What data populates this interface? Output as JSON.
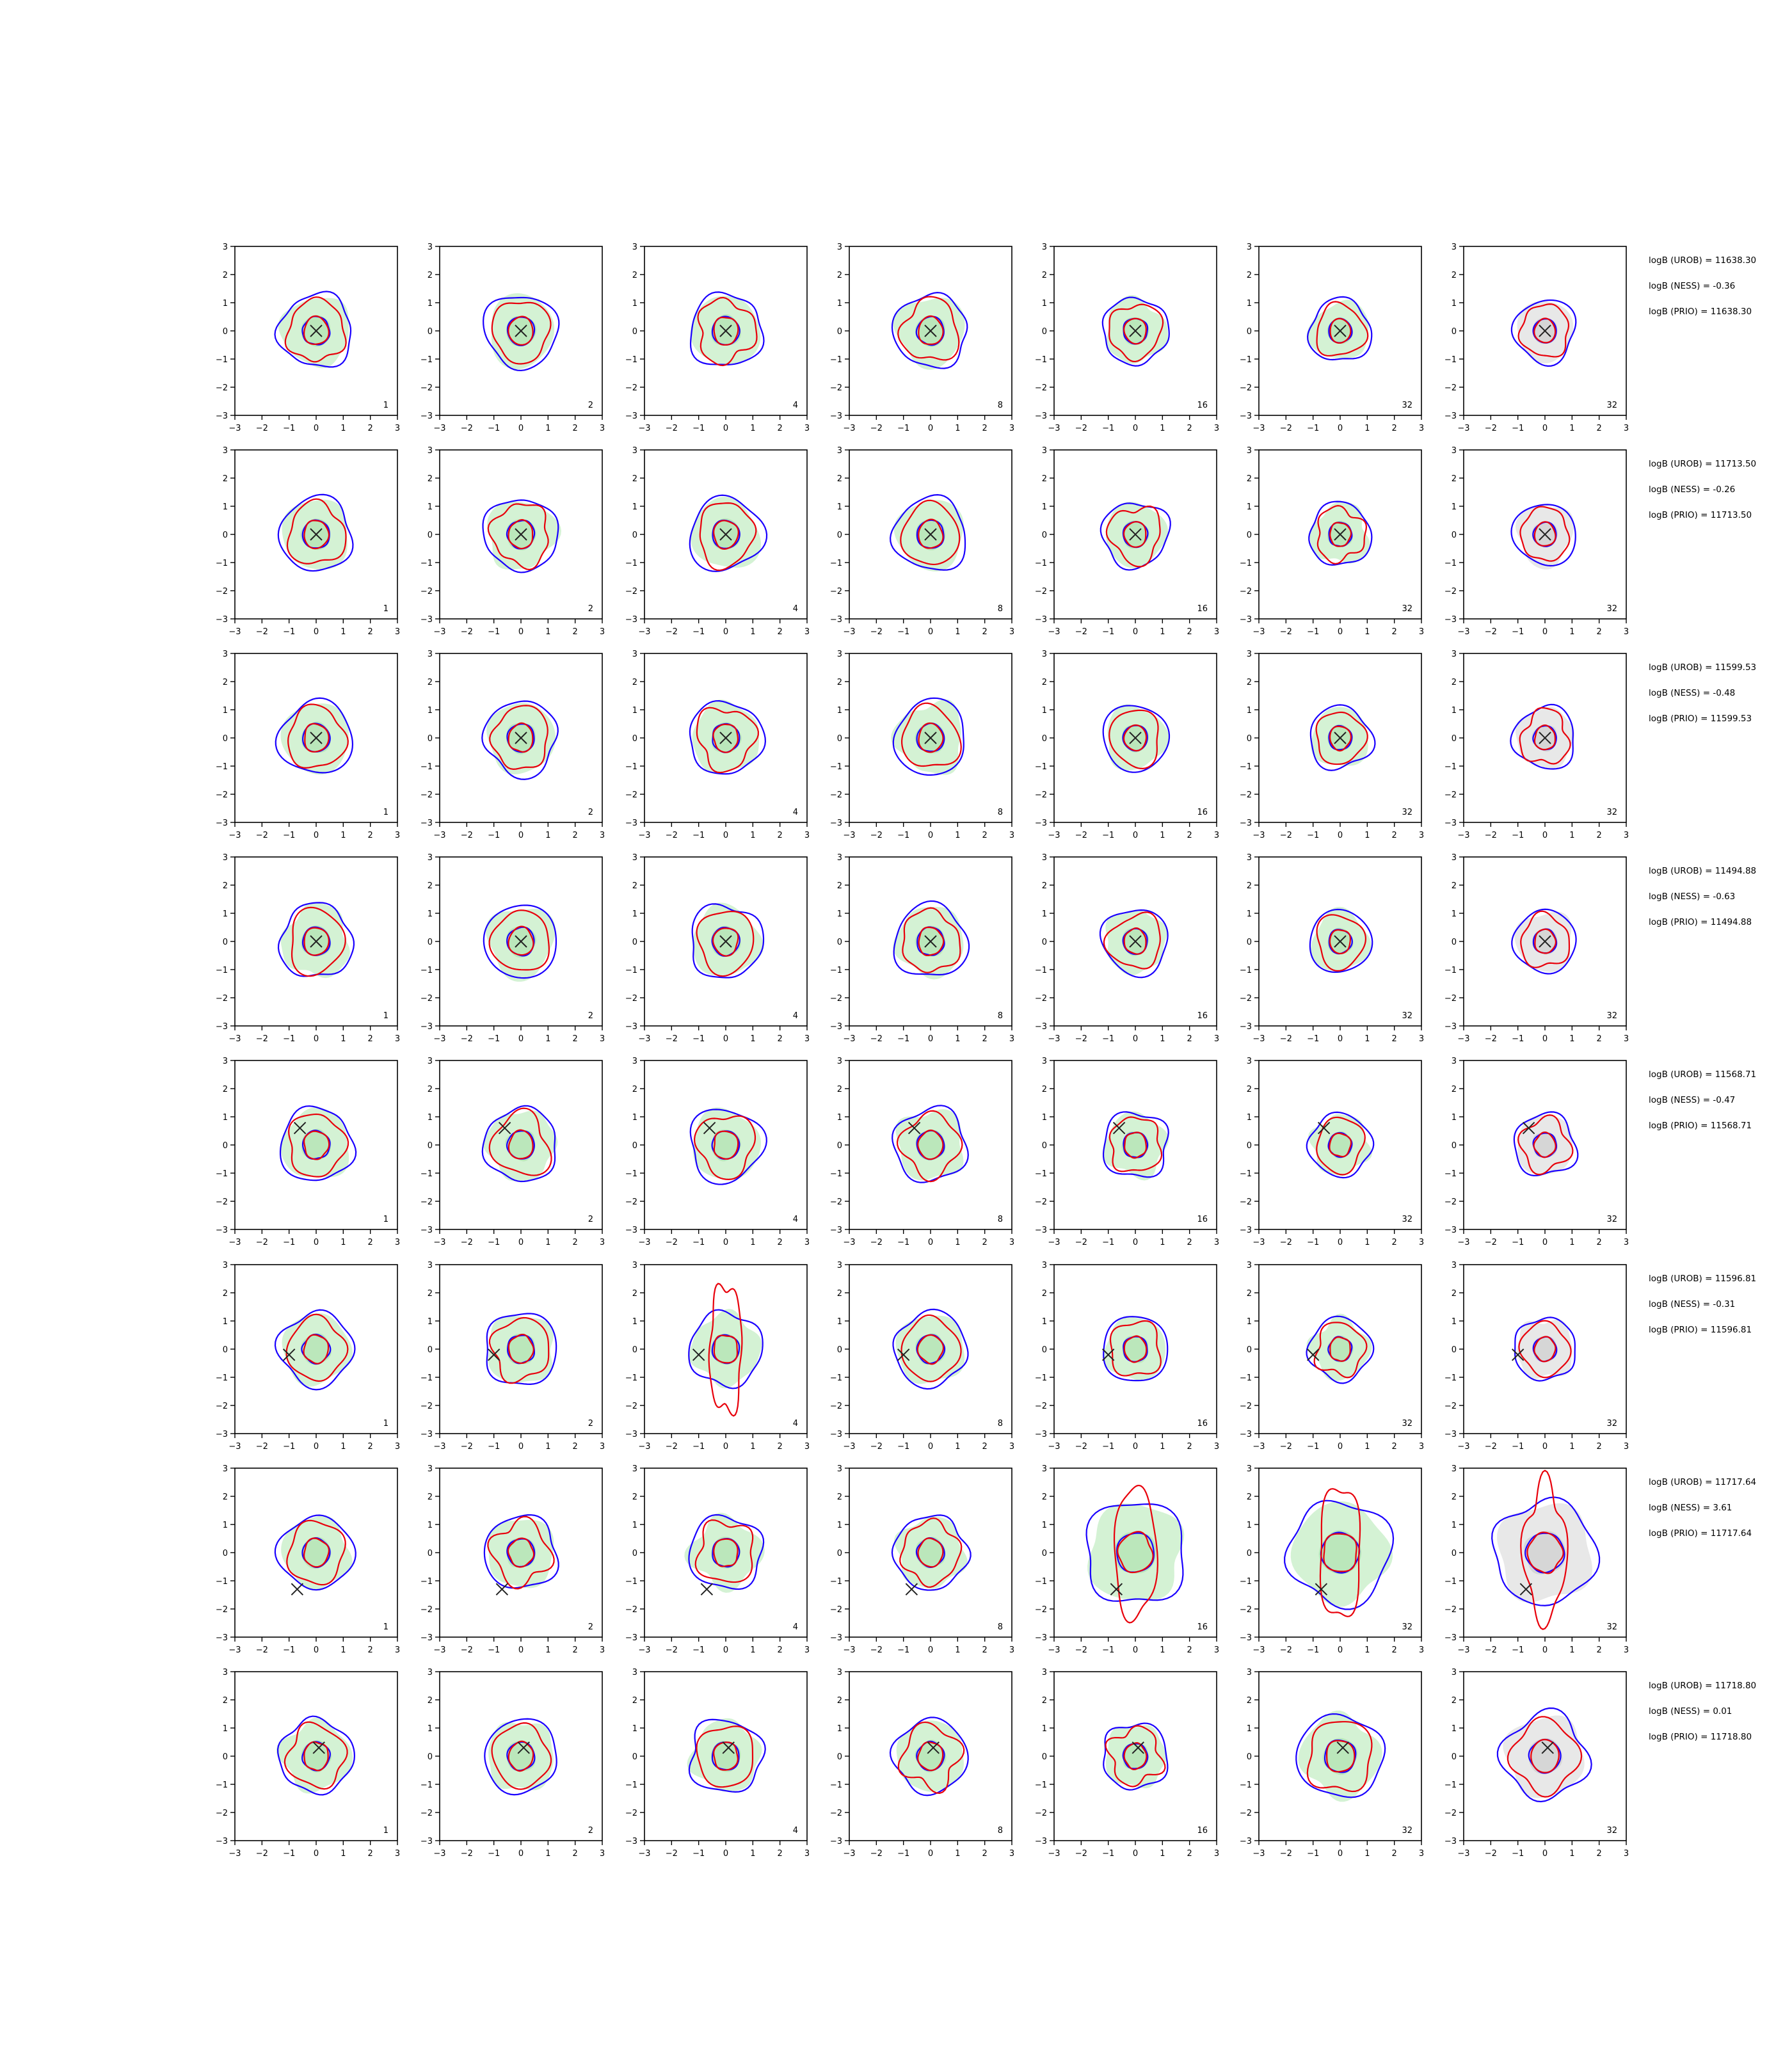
{
  "chart_data": {
    "type": "contour-grid",
    "xlim": [
      -3,
      3
    ],
    "ylim": [
      -3,
      3
    ],
    "ticks": [
      "−3",
      "−2",
      "−1",
      "0",
      "1",
      "2",
      "3"
    ],
    "tick_values": [
      -3,
      -2,
      -1,
      0,
      1,
      2,
      3
    ],
    "column_labels": [
      "1",
      "2",
      "4",
      "8",
      "16",
      "32",
      "32"
    ],
    "colors": {
      "fill_green": "#ccf0cc",
      "fill_grey": "#e4e4e4",
      "red": "#e8000b",
      "blue": "#1a00ff",
      "marker": "#222222"
    },
    "rows": [
      {
        "marker": [
          0,
          0
        ],
        "ann": [
          "logB (UROB) = 11638.30",
          "logB (NESS) = -0.36",
          "logB (PRIO) = 11638.30"
        ]
      },
      {
        "marker": [
          0,
          0
        ],
        "ann": [
          "logB (UROB) = 11713.50",
          "logB (NESS) = -0.26",
          "logB (PRIO) = 11713.50"
        ]
      },
      {
        "marker": [
          0,
          0
        ],
        "ann": [
          "logB (UROB) = 11599.53",
          "logB (NESS) = -0.48",
          "logB (PRIO) = 11599.53"
        ]
      },
      {
        "marker": [
          0,
          0
        ],
        "ann": [
          "logB (UROB) = 11494.88",
          "logB (NESS) = -0.63",
          "logB (PRIO) = 11494.88"
        ]
      },
      {
        "marker": [
          -0.6,
          0.6
        ],
        "ann": [
          "logB (UROB) = 11568.71",
          "logB (NESS) = -0.47",
          "logB (PRIO) = 11568.71"
        ]
      },
      {
        "marker": [
          -1.0,
          -0.2
        ],
        "ann": [
          "logB (UROB) = 11596.81",
          "logB (NESS) = -0.31",
          "logB (PRIO) = 11596.81"
        ]
      },
      {
        "marker": [
          -0.7,
          -1.3
        ],
        "ann": [
          "logB (UROB) = 11717.64",
          "logB (NESS) = 3.61",
          "logB (PRIO) = 11717.64"
        ]
      },
      {
        "marker": [
          0.1,
          0.3
        ],
        "ann": [
          "logB (UROB) = 11718.80",
          "logB (NESS) = 0.01",
          "logB (PRIO) = 11718.80"
        ]
      }
    ]
  }
}
